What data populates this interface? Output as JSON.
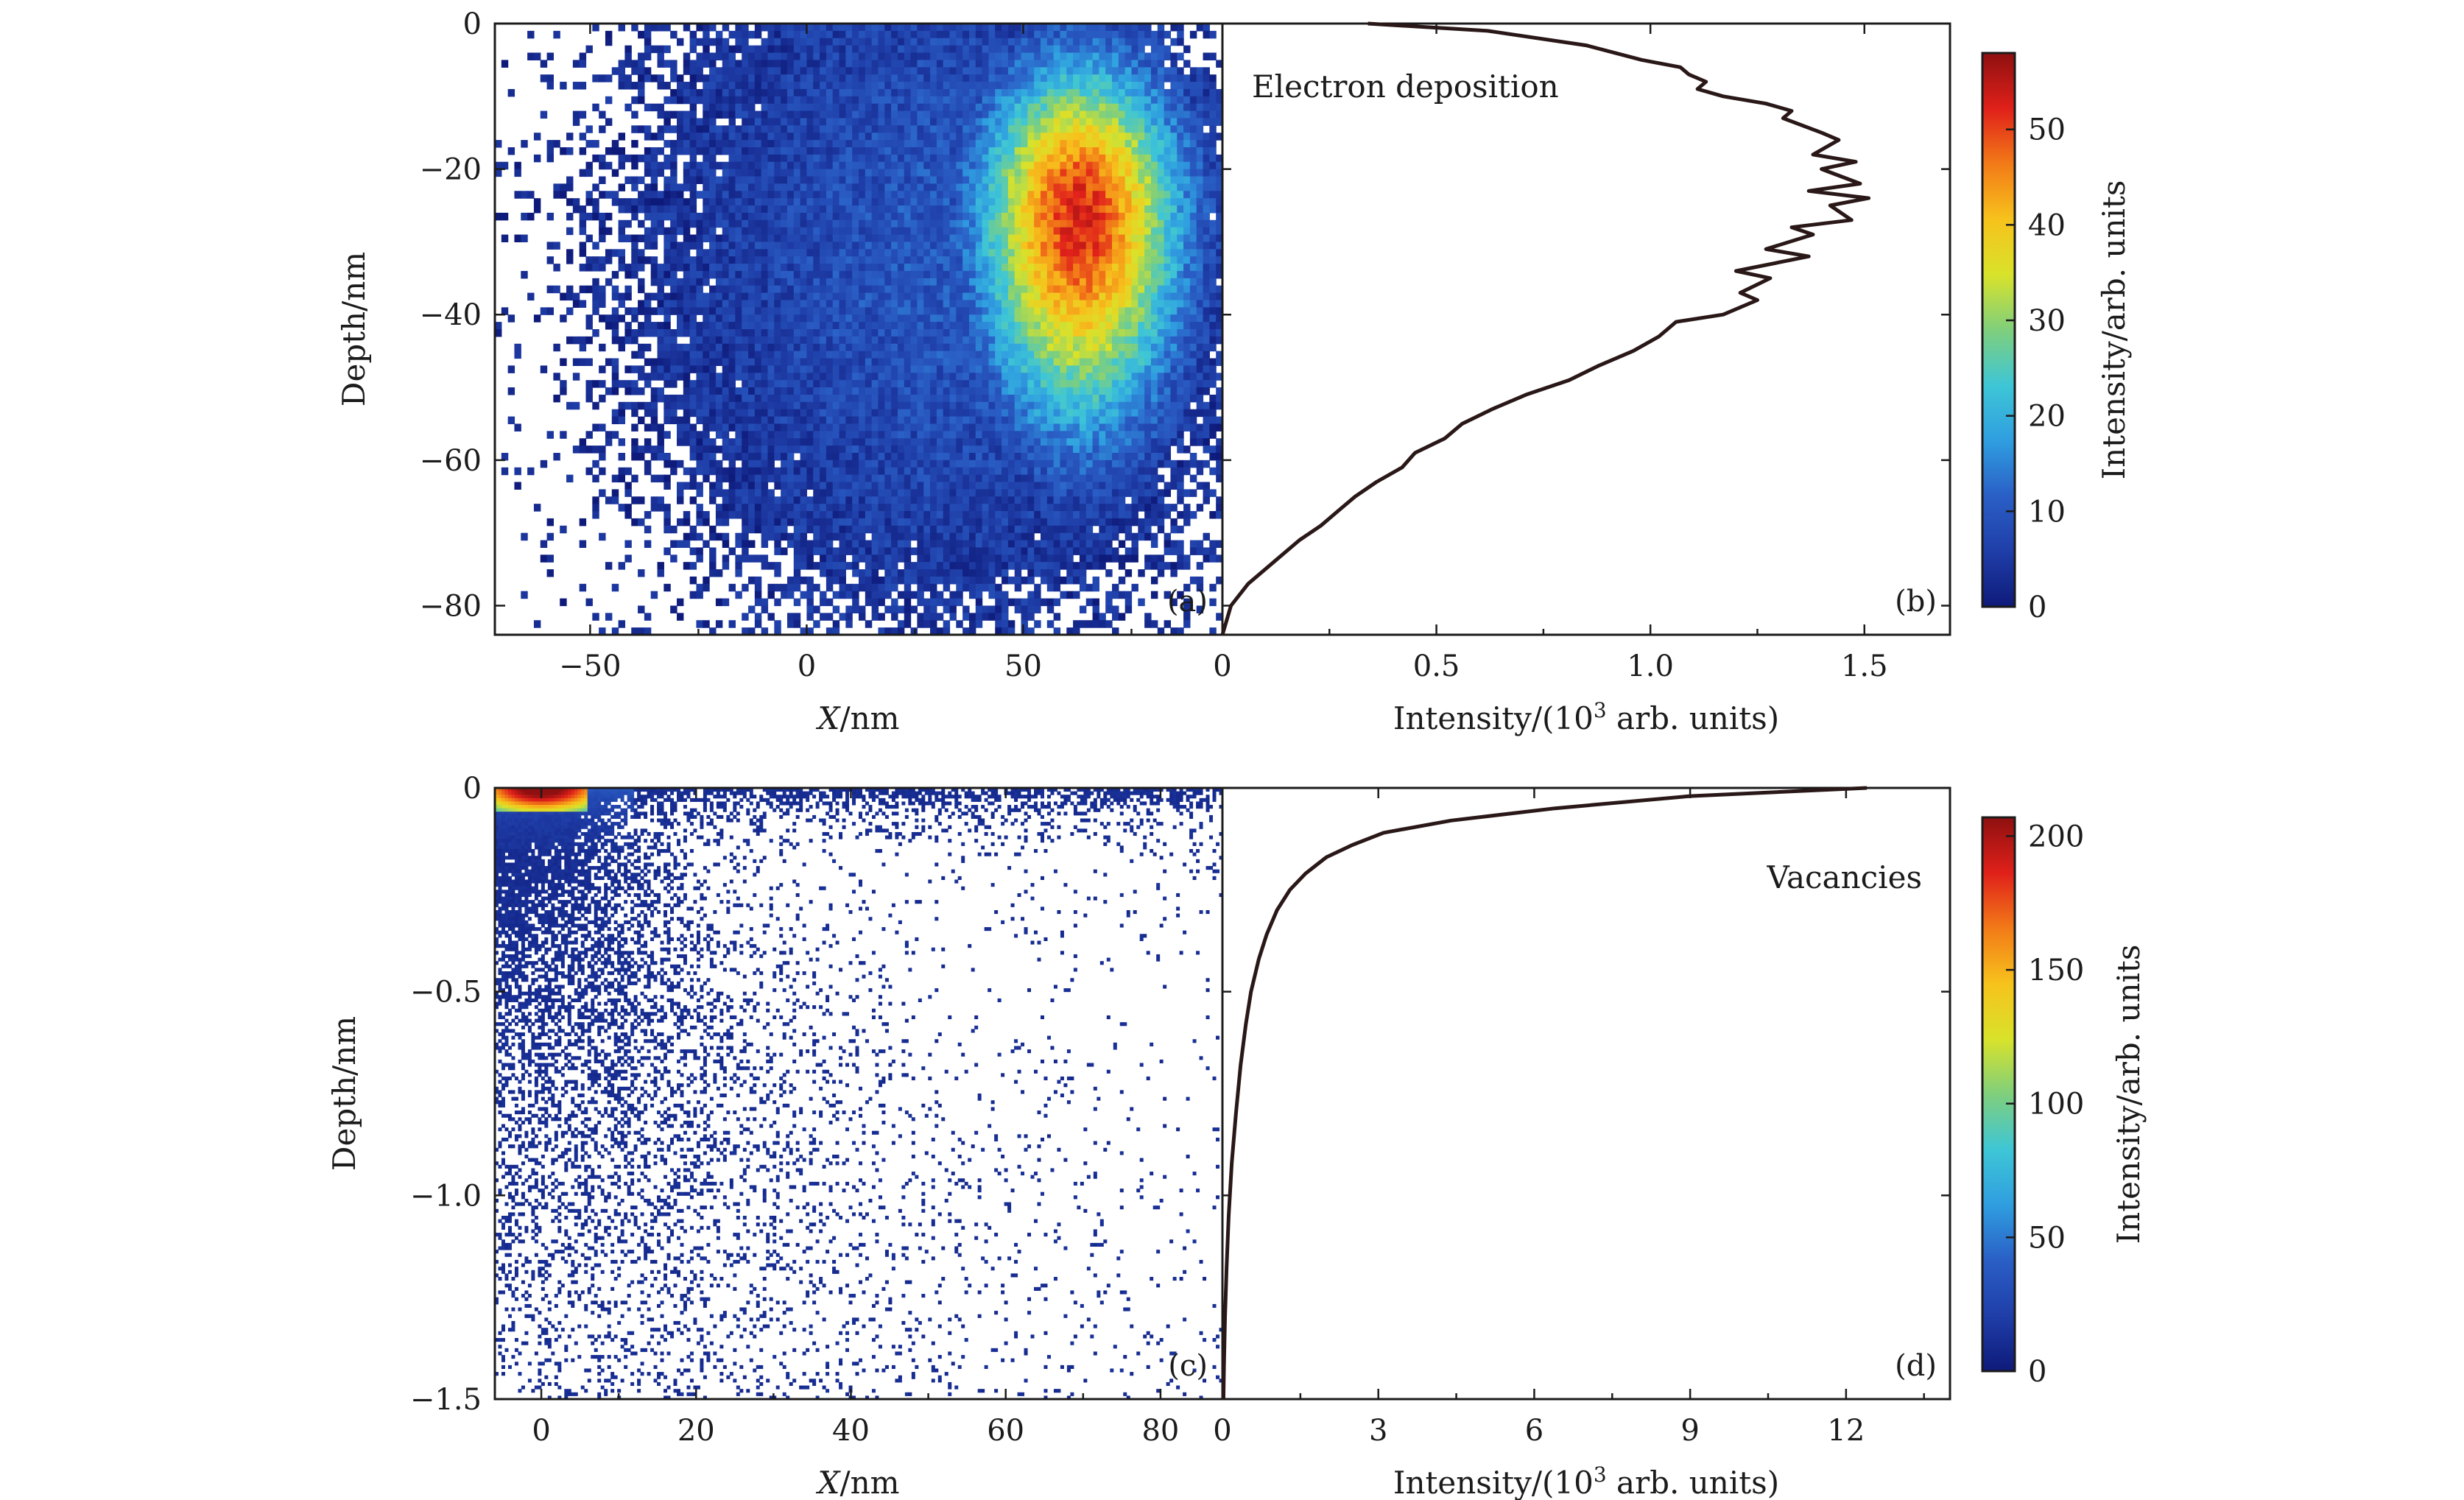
{
  "chart_data": [
    {
      "id": "a",
      "type": "heatmap",
      "panel_label": "(a)",
      "xlabel_var": "X",
      "xlabel_unit": "/nm",
      "ylabel": "Depth/nm",
      "xlim": [
        -72,
        96
      ],
      "ylim": [
        -84,
        0
      ],
      "xticks": [
        -50,
        0,
        50
      ],
      "xtick_labels": [
        "−50",
        "0",
        "50"
      ],
      "yticks": [
        0,
        -20,
        -40,
        -60,
        -80
      ],
      "ytick_labels": [
        "0",
        "−20",
        "−40",
        "−60",
        "−80"
      ],
      "distribution": {
        "center_x": 63,
        "center_depth": -26,
        "spread_x": 16,
        "spread_depth_up": 14,
        "spread_depth_down": 20,
        "peak": 52
      }
    },
    {
      "id": "b",
      "type": "line",
      "panel_label": "(b)",
      "annotation": "Electron deposition",
      "xlabel": "Intensity/(10",
      "xlabel_sup": "3",
      "xlabel_tail": " arb. units)",
      "xlim": [
        0,
        1.7
      ],
      "ylim": [
        -84,
        0
      ],
      "xticks": [
        0,
        0.5,
        1.0,
        1.5
      ],
      "xtick_labels": [
        "0",
        "0.5",
        "1.0",
        "1.5"
      ],
      "series": [
        {
          "x": [
            0.34,
            0.62,
            0.85,
            0.98,
            1.07,
            1.09,
            1.13,
            1.11,
            1.17,
            1.27,
            1.33,
            1.31,
            1.4,
            1.44,
            1.38,
            1.48,
            1.4,
            1.49,
            1.37,
            1.51,
            1.42,
            1.47,
            1.33,
            1.38,
            1.27,
            1.37,
            1.2,
            1.28,
            1.21,
            1.25,
            1.17,
            1.06,
            1.02,
            0.96,
            0.88,
            0.81,
            0.71,
            0.63,
            0.56,
            0.52,
            0.45,
            0.42,
            0.36,
            0.31,
            0.27,
            0.23,
            0.18,
            0.12,
            0.06,
            0.02,
            0.0
          ],
          "y": [
            0,
            -1,
            -3,
            -5,
            -6,
            -7,
            -8,
            -9,
            -10,
            -11,
            -12,
            -13,
            -15,
            -16,
            -18,
            -19,
            -20,
            -22,
            -23,
            -24,
            -25,
            -27,
            -28,
            -29,
            -31,
            -32,
            -34,
            -35,
            -37,
            -38,
            -40,
            -41,
            -43,
            -45,
            -47,
            -49,
            -51,
            -53,
            -55,
            -57,
            -59,
            -61,
            -63,
            -65,
            -67,
            -69,
            -71,
            -74,
            -77,
            -80,
            -84
          ]
        }
      ]
    },
    {
      "id": "c",
      "type": "heatmap",
      "panel_label": "(c)",
      "xlabel_var": "X",
      "xlabel_unit": "/nm",
      "ylabel": "Depth/nm",
      "xlim": [
        -6,
        88
      ],
      "ylim": [
        -1.5,
        0
      ],
      "xticks": [
        0,
        20,
        40,
        60,
        80
      ],
      "xtick_labels": [
        "0",
        "20",
        "40",
        "60",
        "80"
      ],
      "yticks": [
        0,
        -0.5,
        -1.0,
        -1.5
      ],
      "ytick_labels": [
        "0",
        "−0.5",
        "−1.0",
        "−1.5"
      ],
      "distribution": {
        "hotspot_x": [
          -6,
          6
        ],
        "hotspot_depth": [
          0,
          -0.06
        ],
        "hot_peak": 200
      }
    },
    {
      "id": "d",
      "type": "line",
      "panel_label": "(d)",
      "annotation": "Vacancies",
      "xlabel": "Intensity/(10",
      "xlabel_sup": "3",
      "xlabel_tail": " arb. units)",
      "xlim": [
        0,
        14
      ],
      "ylim": [
        -1.5,
        0
      ],
      "xticks": [
        0,
        3,
        6,
        9,
        12
      ],
      "xtick_labels": [
        "0",
        "3",
        "6",
        "9",
        "12"
      ],
      "series": [
        {
          "x": [
            12.4,
            9.0,
            6.4,
            4.4,
            3.1,
            2.5,
            2.0,
            1.6,
            1.3,
            1.05,
            0.85,
            0.7,
            0.55,
            0.45,
            0.35,
            0.26,
            0.18,
            0.12,
            0.08,
            0.05,
            0.03,
            0.02
          ],
          "y": [
            0,
            -0.02,
            -0.05,
            -0.08,
            -0.11,
            -0.14,
            -0.17,
            -0.21,
            -0.25,
            -0.3,
            -0.36,
            -0.42,
            -0.5,
            -0.58,
            -0.68,
            -0.8,
            -0.92,
            -1.05,
            -1.18,
            -1.3,
            -1.42,
            -1.5
          ]
        }
      ]
    }
  ],
  "colorbars": [
    {
      "id": "top",
      "label": "Intensity/arb. units",
      "range": [
        0,
        58
      ],
      "ticks": [
        0,
        10,
        20,
        30,
        40,
        50
      ],
      "tick_labels": [
        "0",
        "10",
        "20",
        "30",
        "40",
        "50"
      ]
    },
    {
      "id": "bottom",
      "label": "Intensity/arb. units",
      "range": [
        0,
        207
      ],
      "ticks": [
        0,
        50,
        100,
        150,
        200
      ],
      "tick_labels": [
        "0",
        "50",
        "100",
        "150",
        "200"
      ]
    }
  ],
  "colormap": [
    "#0e1a7a",
    "#1f3ea8",
    "#2a5fc6",
    "#2f9ee0",
    "#3ec6d6",
    "#7fcf7c",
    "#d9e22a",
    "#f7c21c",
    "#f27a18",
    "#e0201a",
    "#8e1010"
  ]
}
